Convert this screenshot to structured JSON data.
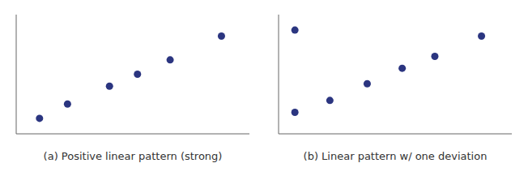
{
  "chart_data": [
    {
      "type": "scatter",
      "xlabel": "(a) Positive linear pattern (strong)",
      "x": [
        0.1,
        0.22,
        0.4,
        0.52,
        0.66,
        0.88
      ],
      "values": [
        0.13,
        0.25,
        0.4,
        0.5,
        0.62,
        0.82
      ],
      "color": "#2b3580",
      "marker": "circle",
      "xlim": [
        0,
        1
      ],
      "ylim": [
        0,
        1
      ],
      "tick_labels": false,
      "grid": false
    },
    {
      "type": "scatter",
      "xlabel": "(b) Linear pattern w/ one deviation",
      "x": [
        0.07,
        0.22,
        0.38,
        0.53,
        0.67,
        0.87,
        0.07
      ],
      "values": [
        0.18,
        0.28,
        0.42,
        0.55,
        0.65,
        0.82,
        0.87
      ],
      "color": "#2b3580",
      "marker": "circle",
      "xlim": [
        0,
        1
      ],
      "ylim": [
        0,
        1
      ],
      "tick_labels": false,
      "grid": false
    }
  ]
}
